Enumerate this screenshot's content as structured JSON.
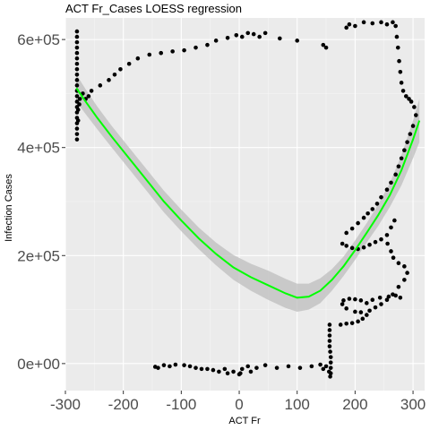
{
  "chart_data": {
    "type": "scatter",
    "title": "ACT Fr_Cases LOESS regression",
    "xlabel": "ACT Fr",
    "ylabel": "Infection Cases",
    "xlim": [
      -300,
      320
    ],
    "ylim": [
      -50000,
      640000
    ],
    "x_ticks": [
      -300,
      -200,
      -100,
      0,
      100,
      200,
      300
    ],
    "x_tick_labels": [
      "-300",
      "-200",
      "-100",
      "0",
      "100",
      "200",
      "300"
    ],
    "y_ticks": [
      0,
      200000,
      400000,
      600000
    ],
    "y_tick_labels": [
      "0e+00",
      "2e+05",
      "4e+05",
      "6e+05"
    ],
    "grid": true,
    "colors": {
      "panel": "#ebebeb",
      "points": "#000000",
      "fit_line": "#00ff00",
      "ribbon": "#bebebe"
    },
    "points": [
      [
        -280,
        615000
      ],
      [
        -280,
        605000
      ],
      [
        -280,
        595000
      ],
      [
        -280,
        585000
      ],
      [
        -280,
        575000
      ],
      [
        -280,
        565000
      ],
      [
        -280,
        555000
      ],
      [
        -280,
        545000
      ],
      [
        -280,
        535000
      ],
      [
        -280,
        525000
      ],
      [
        -280,
        515000
      ],
      [
        -280,
        505000
      ],
      [
        -280,
        495000
      ],
      [
        -280,
        485000
      ],
      [
        -280,
        475000
      ],
      [
        -280,
        465000
      ],
      [
        -280,
        455000
      ],
      [
        -280,
        445000
      ],
      [
        -280,
        435000
      ],
      [
        -280,
        425000
      ],
      [
        -280,
        415000
      ],
      [
        -278,
        450000
      ],
      [
        -278,
        470000
      ],
      [
        -276,
        480000
      ],
      [
        -275,
        490000
      ],
      [
        -270,
        500000
      ],
      [
        -265,
        490000
      ],
      [
        -260,
        495000
      ],
      [
        -255,
        505000
      ],
      [
        -240,
        515000
      ],
      [
        -225,
        525000
      ],
      [
        -215,
        535000
      ],
      [
        -205,
        545000
      ],
      [
        -190,
        555000
      ],
      [
        -175,
        565000
      ],
      [
        -155,
        572000
      ],
      [
        -135,
        575000
      ],
      [
        -115,
        578000
      ],
      [
        -95,
        580000
      ],
      [
        -75,
        585000
      ],
      [
        -55,
        590000
      ],
      [
        -40,
        598000
      ],
      [
        -20,
        603000
      ],
      [
        -5,
        608000
      ],
      [
        5,
        605000
      ],
      [
        15,
        612000
      ],
      [
        25,
        610000
      ],
      [
        35,
        605000
      ],
      [
        45,
        612000
      ],
      [
        70,
        602000
      ],
      [
        100,
        598000
      ],
      [
        145,
        590000
      ],
      [
        150,
        585000
      ],
      [
        185,
        622000
      ],
      [
        190,
        628000
      ],
      [
        200,
        625000
      ],
      [
        215,
        632000
      ],
      [
        230,
        630000
      ],
      [
        245,
        632000
      ],
      [
        255,
        628000
      ],
      [
        265,
        632000
      ],
      [
        270,
        625000
      ],
      [
        272,
        605000
      ],
      [
        274,
        585000
      ],
      [
        276,
        560000
      ],
      [
        278,
        540000
      ],
      [
        280,
        520000
      ],
      [
        283,
        505000
      ],
      [
        288,
        495000
      ],
      [
        293,
        490000
      ],
      [
        297,
        485000
      ],
      [
        302,
        475000
      ],
      [
        305,
        460000
      ],
      [
        300,
        440000
      ],
      [
        295,
        425000
      ],
      [
        290,
        410000
      ],
      [
        285,
        395000
      ],
      [
        280,
        380000
      ],
      [
        275,
        365000
      ],
      [
        270,
        350000
      ],
      [
        262,
        335000
      ],
      [
        255,
        322000
      ],
      [
        245,
        308000
      ],
      [
        238,
        296000
      ],
      [
        230,
        286000
      ],
      [
        222,
        278000
      ],
      [
        215,
        270000
      ],
      [
        205,
        260000
      ],
      [
        195,
        250000
      ],
      [
        185,
        242000
      ],
      [
        178,
        222000
      ],
      [
        185,
        218000
      ],
      [
        195,
        214000
      ],
      [
        205,
        212000
      ],
      [
        215,
        215000
      ],
      [
        225,
        220000
      ],
      [
        235,
        225000
      ],
      [
        245,
        230000
      ],
      [
        255,
        238000
      ],
      [
        262,
        252000
      ],
      [
        268,
        265000
      ],
      [
        256,
        222000
      ],
      [
        262,
        208000
      ],
      [
        266,
        196000
      ],
      [
        275,
        186000
      ],
      [
        285,
        180000
      ],
      [
        290,
        168000
      ],
      [
        285,
        155000
      ],
      [
        275,
        142000
      ],
      [
        265,
        128000
      ],
      [
        255,
        118000
      ],
      [
        245,
        110000
      ],
      [
        235,
        104000
      ],
      [
        225,
        98000
      ],
      [
        210,
        95000
      ],
      [
        200,
        96000
      ],
      [
        185,
        102000
      ],
      [
        178,
        110000
      ],
      [
        180,
        117000
      ],
      [
        190,
        120000
      ],
      [
        200,
        119000
      ],
      [
        210,
        117000
      ],
      [
        220,
        112000
      ],
      [
        230,
        118000
      ],
      [
        243,
        122000
      ],
      [
        258,
        124000
      ],
      [
        270,
        126000
      ],
      [
        278,
        122000
      ],
      [
        175,
        72000
      ],
      [
        185,
        74000
      ],
      [
        195,
        75000
      ],
      [
        205,
        78000
      ],
      [
        213,
        83000
      ],
      [
        220,
        90000
      ],
      [
        156,
        72000
      ],
      [
        156,
        62000
      ],
      [
        156,
        52000
      ],
      [
        156,
        42000
      ],
      [
        156,
        32000
      ],
      [
        157,
        22000
      ],
      [
        158,
        12000
      ],
      [
        158,
        2000
      ],
      [
        158,
        -8000
      ],
      [
        158,
        -18000
      ],
      [
        157,
        -24000
      ],
      [
        155,
        -15000
      ],
      [
        150,
        -5000
      ],
      [
        145,
        -10000
      ],
      [
        140,
        -2000
      ],
      [
        125,
        -5000
      ],
      [
        105,
        -8000
      ],
      [
        85,
        -5000
      ],
      [
        65,
        -8000
      ],
      [
        45,
        -3000
      ],
      [
        30,
        -8000
      ],
      [
        20,
        -15000
      ],
      [
        15,
        -5000
      ],
      [
        5,
        -10000
      ],
      [
        2,
        -18000
      ],
      [
        0,
        -20000
      ],
      [
        -10,
        -15000
      ],
      [
        -20,
        -18000
      ],
      [
        -25,
        -10000
      ],
      [
        -35,
        -15000
      ],
      [
        -45,
        -12000
      ],
      [
        -55,
        -10000
      ],
      [
        -65,
        -10000
      ],
      [
        -75,
        -8000
      ],
      [
        -85,
        -5000
      ],
      [
        -95,
        -3000
      ],
      [
        -110,
        -2000
      ],
      [
        -120,
        -5000
      ],
      [
        -130,
        -3000
      ],
      [
        -140,
        -8000
      ],
      [
        -145,
        -6000
      ]
    ],
    "loess_fit": [
      [
        -281,
        510000
      ],
      [
        -265,
        485000
      ],
      [
        -245,
        455000
      ],
      [
        -220,
        420000
      ],
      [
        -190,
        380000
      ],
      [
        -160,
        340000
      ],
      [
        -130,
        300000
      ],
      [
        -100,
        265000
      ],
      [
        -70,
        232000
      ],
      [
        -40,
        203000
      ],
      [
        -10,
        178000
      ],
      [
        20,
        160000
      ],
      [
        50,
        145000
      ],
      [
        80,
        130000
      ],
      [
        100,
        122000
      ],
      [
        120,
        124000
      ],
      [
        140,
        135000
      ],
      [
        160,
        155000
      ],
      [
        180,
        180000
      ],
      [
        200,
        210000
      ],
      [
        220,
        242000
      ],
      [
        240,
        275000
      ],
      [
        260,
        312000
      ],
      [
        280,
        358000
      ],
      [
        300,
        415000
      ],
      [
        311,
        450000
      ]
    ],
    "loess_band": [
      [
        -281,
        485000,
        535000
      ],
      [
        -265,
        462000,
        508000
      ],
      [
        -245,
        434000,
        476000
      ],
      [
        -220,
        400000,
        440000
      ],
      [
        -190,
        360000,
        400000
      ],
      [
        -160,
        320000,
        360000
      ],
      [
        -130,
        280000,
        320000
      ],
      [
        -100,
        245000,
        285000
      ],
      [
        -70,
        212000,
        252000
      ],
      [
        -40,
        182000,
        224000
      ],
      [
        -10,
        155000,
        201000
      ],
      [
        20,
        135000,
        185000
      ],
      [
        50,
        118000,
        172000
      ],
      [
        80,
        103000,
        157000
      ],
      [
        100,
        96000,
        148000
      ],
      [
        120,
        100000,
        148000
      ],
      [
        140,
        112000,
        158000
      ],
      [
        160,
        135000,
        175000
      ],
      [
        180,
        162000,
        198000
      ],
      [
        200,
        192000,
        228000
      ],
      [
        220,
        224000,
        260000
      ],
      [
        240,
        255000,
        295000
      ],
      [
        260,
        290000,
        334000
      ],
      [
        280,
        330000,
        386000
      ],
      [
        300,
        380000,
        450000
      ],
      [
        311,
        410000,
        490000
      ]
    ]
  }
}
